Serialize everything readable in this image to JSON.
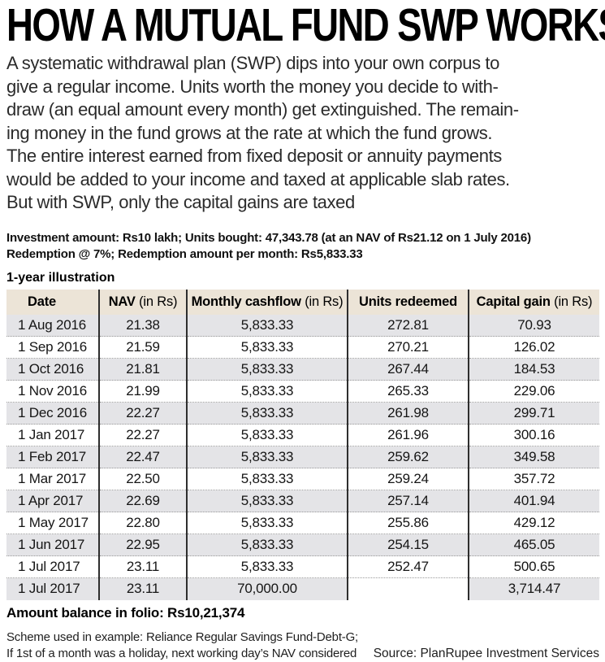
{
  "title": "HOW A MUTUAL FUND SWP WORKS",
  "intro": "A systematic withdrawal plan (SWP) dips into your own corpus to\ngive a regular income. Units worth the money you decide to with-\ndraw (an equal amount every month) get extinguished. The remain-\ning money in the fund grows at the rate at which the fund grows.\nThe entire interest earned from fixed deposit or annuity payments\nwould be added to your income and taxed at applicable slab rates.\nBut with SWP, only the capital gains are taxed",
  "parameters": {
    "line1": "Investment amount: Rs10 lakh; Units bought: 47,343.78 (at an NAV of Rs21.12 on 1 July 2016)",
    "line2": "Redemption @ 7%; Redemption amount per month: Rs5,833.33"
  },
  "table": {
    "caption": "1-year illustration",
    "columns": [
      {
        "label": "Date",
        "suffix": ""
      },
      {
        "label": "NAV",
        "suffix": " (in Rs)"
      },
      {
        "label": "Monthly cashflow",
        "suffix": " (in Rs)"
      },
      {
        "label": "Units redeemed",
        "suffix": ""
      },
      {
        "label": "Capital gain",
        "suffix": " (in Rs)"
      }
    ],
    "rows": [
      [
        "1 Aug 2016",
        "21.38",
        "5,833.33",
        "272.81",
        "70.93"
      ],
      [
        "1 Sep 2016",
        "21.59",
        "5,833.33",
        "270.21",
        "126.02"
      ],
      [
        "1 Oct 2016",
        "21.81",
        "5,833.33",
        "267.44",
        "184.53"
      ],
      [
        "1 Nov 2016",
        "21.99",
        "5,833.33",
        "265.33",
        "229.06"
      ],
      [
        "1 Dec 2016",
        "22.27",
        "5,833.33",
        "261.98",
        "299.71"
      ],
      [
        "1 Jan 2017",
        "22.27",
        "5,833.33",
        "261.96",
        "300.16"
      ],
      [
        "1 Feb 2017",
        "22.47",
        "5,833.33",
        "259.62",
        "349.58"
      ],
      [
        "1 Mar 2017",
        "22.50",
        "5,833.33",
        "259.24",
        "357.72"
      ],
      [
        "1 Apr 2017",
        "22.69",
        "5,833.33",
        "257.14",
        "401.94"
      ],
      [
        "1 May 2017",
        "22.80",
        "5,833.33",
        "255.86",
        "429.12"
      ],
      [
        "1 Jun 2017",
        "22.95",
        "5,833.33",
        "254.15",
        "465.05"
      ],
      [
        "1 Jul 2017",
        "23.11",
        "5,833.33",
        "252.47",
        "500.65"
      ],
      [
        "1 Jul 2017",
        "23.11",
        "70,000.00",
        "",
        "3,714.47"
      ]
    ]
  },
  "summary": "Amount balance in folio: Rs10,21,374",
  "footnote": "Scheme used in example: Reliance Regular Savings Fund-Debt-G;\nIf 1st of a month was a holiday, next working day’s NAV considered",
  "source": "Source: PlanRupee Investment Services",
  "colors": {
    "header_bg": "#ece4d7",
    "row_alt_bg": "#e4e4e7",
    "grid_line": "#2e2e2e"
  }
}
